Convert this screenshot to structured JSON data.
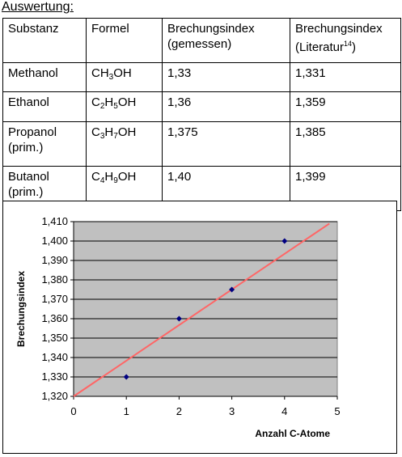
{
  "heading": "Auswertung:",
  "table": {
    "headers": [
      {
        "line1": "Substanz",
        "line2": ""
      },
      {
        "line1": "Formel",
        "line2": ""
      },
      {
        "line1": "Brechungsindex",
        "line2": "(gemessen)"
      },
      {
        "line1": "Brechungsindex",
        "line2": "(Literatur",
        "ref": "14",
        "close": ")"
      }
    ],
    "rows": [
      {
        "substance": "Methanol",
        "substance2": "",
        "formula": [
          [
            "CH",
            ""
          ],
          [
            "3",
            "sub"
          ],
          [
            "OH",
            ""
          ]
        ],
        "measured": "1,33",
        "literature": "1,331"
      },
      {
        "substance": "Ethanol",
        "substance2": "",
        "formula": [
          [
            "C",
            ""
          ],
          [
            "2",
            "sub"
          ],
          [
            "H",
            ""
          ],
          [
            "5",
            "sub"
          ],
          [
            "OH",
            ""
          ]
        ],
        "measured": "1,36",
        "literature": "1,359"
      },
      {
        "substance": "Propanol",
        "substance2": "(prim.)",
        "formula": [
          [
            "C",
            ""
          ],
          [
            "3",
            "sub"
          ],
          [
            "H",
            ""
          ],
          [
            "7",
            "sub"
          ],
          [
            "OH",
            ""
          ]
        ],
        "measured": "1,375",
        "literature": "1,385"
      },
      {
        "substance": "Butanol",
        "substance2": "(prim.)",
        "formula": [
          [
            "C",
            ""
          ],
          [
            "4",
            "sub"
          ],
          [
            "H",
            ""
          ],
          [
            "9",
            "sub"
          ],
          [
            "OH",
            ""
          ]
        ],
        "measured": "1,40",
        "literature": "1,399"
      }
    ]
  },
  "chart_data": {
    "type": "scatter",
    "title": "",
    "xlabel": "Anzahl C-Atome",
    "ylabel": "Brechungsindex",
    "xlim": [
      0,
      5
    ],
    "ylim": [
      1.32,
      1.41
    ],
    "x_ticks": [
      "0",
      "1",
      "2",
      "3",
      "4",
      "5"
    ],
    "y_ticks": [
      "1,320",
      "1,330",
      "1,340",
      "1,350",
      "1,360",
      "1,370",
      "1,380",
      "1,390",
      "1,400",
      "1,410"
    ],
    "grid": "horizontal",
    "plot_background": "#c0c0c0",
    "marker_color": "#000080",
    "trendline_color": "#ff6666",
    "points": [
      {
        "x": 1,
        "y": 1.33
      },
      {
        "x": 2,
        "y": 1.36
      },
      {
        "x": 3,
        "y": 1.375
      },
      {
        "x": 4,
        "y": 1.4
      }
    ],
    "trendline": {
      "x0": 0,
      "y0": 1.32,
      "x1": 4.85,
      "y1": 1.409
    }
  }
}
